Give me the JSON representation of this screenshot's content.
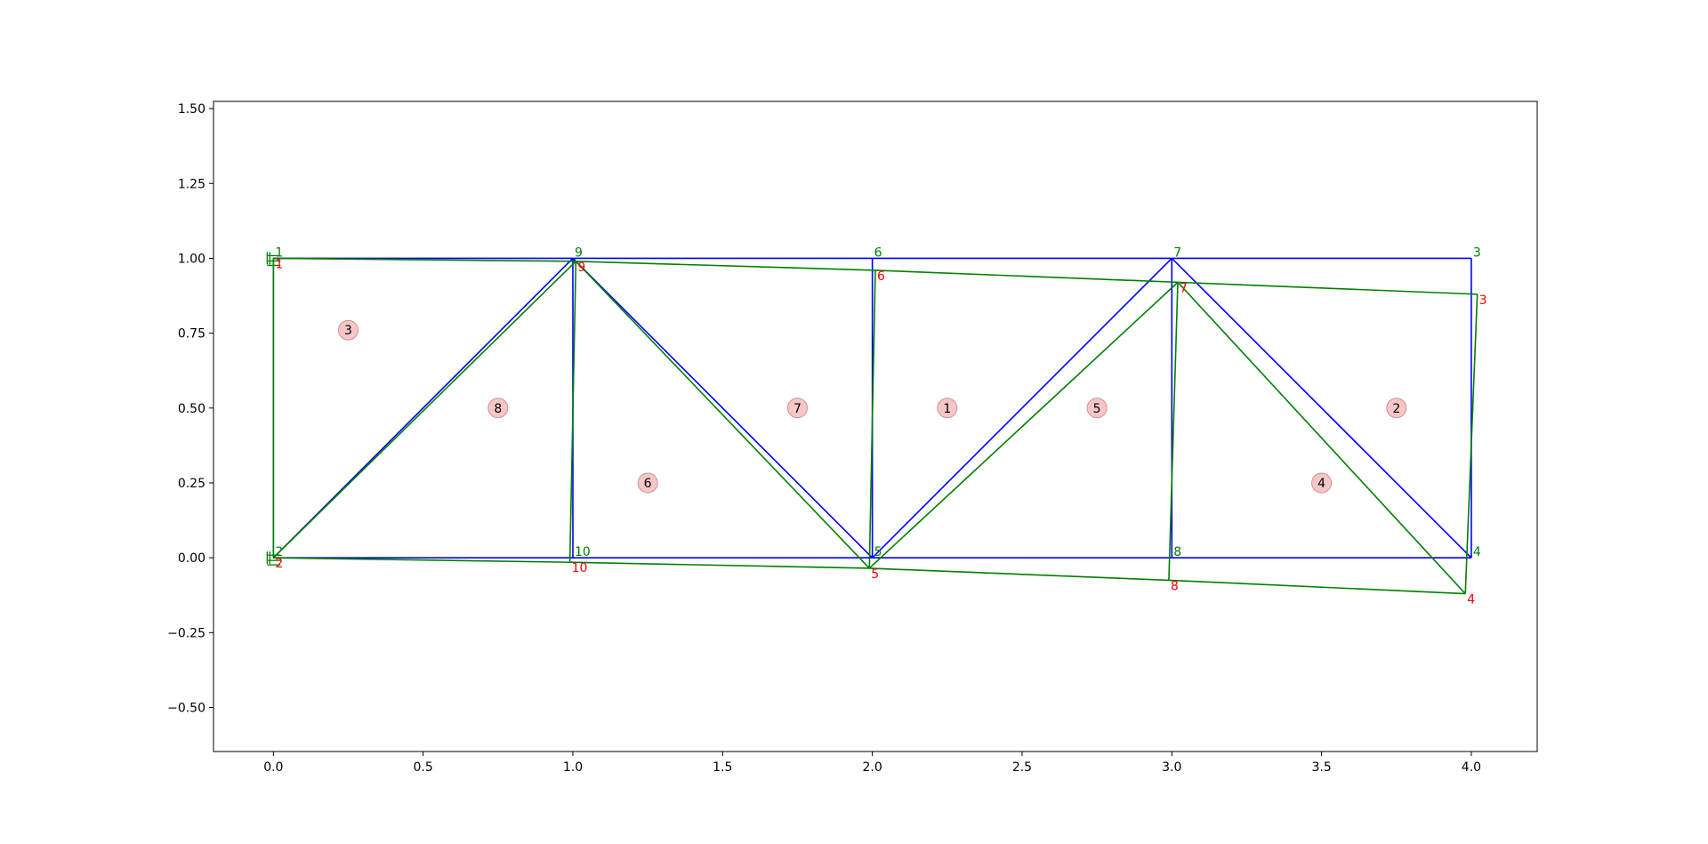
{
  "chart_data": {
    "type": "truss",
    "xlim": [
      -0.2,
      4.22
    ],
    "ylim": [
      -0.647,
      1.524
    ],
    "xticks": [
      {
        "value": 0,
        "label": "0.0"
      },
      {
        "value": 0.5,
        "label": "0.5"
      },
      {
        "value": 1,
        "label": "1.0"
      },
      {
        "value": 1.5,
        "label": "1.5"
      },
      {
        "value": 2,
        "label": "2.0"
      },
      {
        "value": 2.5,
        "label": "2.5"
      },
      {
        "value": 3,
        "label": "3.0"
      },
      {
        "value": 3.5,
        "label": "3.5"
      },
      {
        "value": 4,
        "label": "4.0"
      }
    ],
    "yticks": [
      {
        "value": -0.5,
        "label": "−0.50"
      },
      {
        "value": -0.25,
        "label": "−0.25"
      },
      {
        "value": 0,
        "label": "0.00"
      },
      {
        "value": 0.25,
        "label": "0.25"
      },
      {
        "value": 0.5,
        "label": "0.50"
      },
      {
        "value": 0.75,
        "label": "0.75"
      },
      {
        "value": 1,
        "label": "1.00"
      },
      {
        "value": 1.25,
        "label": "1.25"
      },
      {
        "value": 1.5,
        "label": "1.50"
      }
    ],
    "grid": false,
    "original_color": "#0000ff",
    "deformed_color": "#008000",
    "deformed_label_color": "#ff0000",
    "supports": [
      "1",
      "2"
    ],
    "nodes": [
      {
        "label": "1",
        "x": 0,
        "y": 1
      },
      {
        "label": "2",
        "x": 0,
        "y": 0
      },
      {
        "label": "3",
        "x": 4,
        "y": 1
      },
      {
        "label": "4",
        "x": 4,
        "y": 0
      },
      {
        "label": "5",
        "x": 2,
        "y": 0
      },
      {
        "label": "6",
        "x": 2,
        "y": 1
      },
      {
        "label": "7",
        "x": 3,
        "y": 1
      },
      {
        "label": "8",
        "x": 3,
        "y": 0
      },
      {
        "label": "9",
        "x": 1,
        "y": 1
      },
      {
        "label": "10",
        "x": 1,
        "y": 0
      }
    ],
    "deformed": [
      {
        "x": 0,
        "y": 1
      },
      {
        "x": 0,
        "y": 0
      },
      {
        "x": 4.02,
        "y": 0.88
      },
      {
        "x": 3.98,
        "y": -0.12
      },
      {
        "x": 1.99,
        "y": -0.035
      },
      {
        "x": 2.01,
        "y": 0.96
      },
      {
        "x": 3.02,
        "y": 0.92
      },
      {
        "x": 2.99,
        "y": -0.075
      },
      {
        "x": 1.01,
        "y": 0.99
      },
      {
        "x": 0.99,
        "y": -0.015
      }
    ],
    "elements": [
      [
        "1",
        "9"
      ],
      [
        "9",
        "6"
      ],
      [
        "6",
        "7"
      ],
      [
        "7",
        "3"
      ],
      [
        "2",
        "10"
      ],
      [
        "10",
        "5"
      ],
      [
        "5",
        "8"
      ],
      [
        "8",
        "4"
      ],
      [
        "1",
        "2"
      ],
      [
        "9",
        "10"
      ],
      [
        "6",
        "5"
      ],
      [
        "7",
        "8"
      ],
      [
        "3",
        "4"
      ],
      [
        "2",
        "9"
      ],
      [
        "9",
        "5"
      ],
      [
        "5",
        "7"
      ],
      [
        "7",
        "4"
      ]
    ],
    "regions": [
      {
        "label": "3",
        "x": 0.25,
        "y": 0.76
      },
      {
        "label": "8",
        "x": 0.75,
        "y": 0.5
      },
      {
        "label": "6",
        "x": 1.25,
        "y": 0.25
      },
      {
        "label": "7",
        "x": 1.75,
        "y": 0.5
      },
      {
        "label": "1",
        "x": 2.25,
        "y": 0.5
      },
      {
        "label": "5",
        "x": 2.75,
        "y": 0.5
      },
      {
        "label": "4",
        "x": 3.5,
        "y": 0.25
      },
      {
        "label": "2",
        "x": 3.75,
        "y": 0.5
      }
    ]
  }
}
